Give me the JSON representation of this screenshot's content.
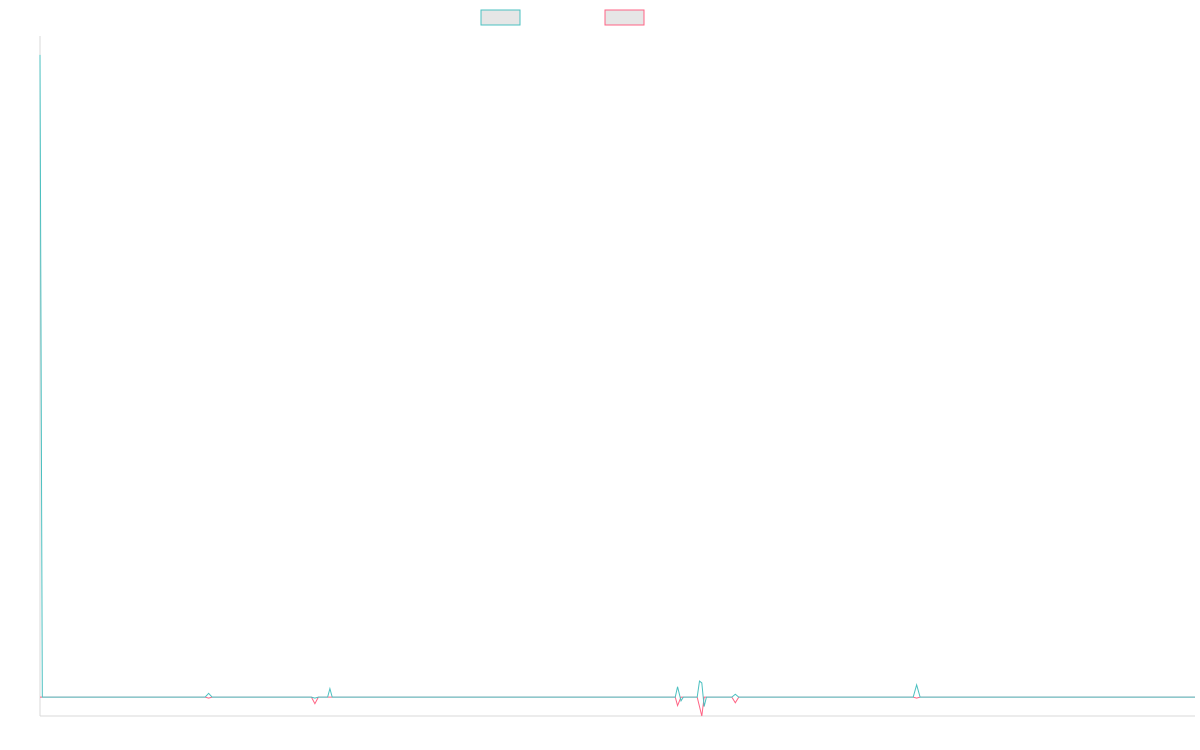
{
  "chart_data": {
    "type": "line",
    "title": "",
    "xlabel": "",
    "ylabel": "",
    "grid": false,
    "legend_placement": "top-center",
    "xlim": [
      0,
      1000
    ],
    "ylim": [
      -1,
      35
    ],
    "series": [
      {
        "color": "#4bc0c0",
        "legend_fill": "#e6e6e6",
        "points": [
          [
            0,
            34
          ],
          [
            2,
            0
          ],
          [
            143,
            0
          ],
          [
            146,
            0.2
          ],
          [
            149,
            0
          ],
          [
            235,
            0
          ],
          [
            238,
            -0.05
          ],
          [
            241,
            0
          ],
          [
            249,
            0
          ],
          [
            251,
            0.45
          ],
          [
            253,
            0
          ],
          [
            550,
            0
          ],
          [
            552,
            0.55
          ],
          [
            555,
            -0.2
          ],
          [
            557,
            0
          ],
          [
            569,
            0
          ],
          [
            571,
            0.85
          ],
          [
            573,
            0.75
          ],
          [
            575,
            -0.5
          ],
          [
            577,
            0
          ],
          [
            599,
            0
          ],
          [
            602,
            0.15
          ],
          [
            605,
            0
          ],
          [
            756,
            0
          ],
          [
            759,
            0.65
          ],
          [
            762,
            0
          ],
          [
            1000,
            0
          ]
        ]
      },
      {
        "color": "#ff6384",
        "legend_fill": "#e6e6e6",
        "points": [
          [
            0,
            0
          ],
          [
            143,
            0
          ],
          [
            146,
            -0.05
          ],
          [
            149,
            0
          ],
          [
            235,
            0
          ],
          [
            238,
            -0.35
          ],
          [
            241,
            0
          ],
          [
            550,
            0
          ],
          [
            552,
            -0.45
          ],
          [
            555,
            0
          ],
          [
            569,
            0
          ],
          [
            573,
            -1.0
          ],
          [
            575,
            0
          ],
          [
            599,
            0
          ],
          [
            602,
            -0.3
          ],
          [
            605,
            0
          ],
          [
            756,
            0
          ],
          [
            759,
            -0.05
          ],
          [
            762,
            0
          ],
          [
            1000,
            0
          ]
        ]
      }
    ]
  }
}
